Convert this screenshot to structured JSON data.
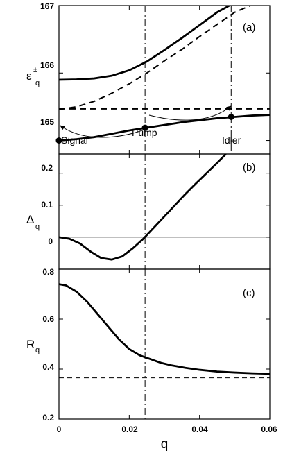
{
  "chart_data": [
    {
      "panel": "a",
      "type": "line",
      "panel_tag": "(a)",
      "ylabel_main": "ε",
      "ylabel_sup": "±",
      "ylabel_sub": "q",
      "xlim": [
        0,
        0.06
      ],
      "ylim": [
        164.8,
        167
      ],
      "yticks": [
        165,
        166,
        167
      ],
      "yticklabels": [
        "165",
        "166",
        "167"
      ],
      "vlines": [
        0.0245,
        0.049
      ],
      "series": [
        {
          "style": "solid",
          "x": [
            0,
            0.005,
            0.01,
            0.015,
            0.02,
            0.025,
            0.03,
            0.035,
            0.04,
            0.045,
            0.0485
          ],
          "y": [
            165.9,
            165.905,
            165.92,
            165.96,
            166.04,
            166.17,
            166.34,
            166.52,
            166.71,
            166.9,
            167.0
          ]
        },
        {
          "style": "dashed",
          "x": [
            0,
            0.005,
            0.01,
            0.015,
            0.02,
            0.025,
            0.03,
            0.035,
            0.04,
            0.045,
            0.05,
            0.0545
          ],
          "y": [
            165.46,
            165.5,
            165.58,
            165.7,
            165.84,
            166.0,
            166.18,
            166.35,
            166.54,
            166.72,
            166.9,
            167.0
          ]
        },
        {
          "style": "dashed",
          "x": [
            0,
            0.06
          ],
          "y": [
            165.47,
            165.47
          ]
        },
        {
          "style": "solid",
          "x": [
            0,
            0.005,
            0.01,
            0.015,
            0.02,
            0.025,
            0.03,
            0.035,
            0.04,
            0.045,
            0.05,
            0.055,
            0.06
          ],
          "y": [
            165.0,
            165.02,
            165.05,
            165.1,
            165.15,
            165.19,
            165.23,
            165.27,
            165.3,
            165.33,
            165.35,
            165.37,
            165.38
          ]
        }
      ],
      "points": [
        {
          "label": "Signal",
          "x": 0,
          "y": 165.0
        },
        {
          "label": "Pump",
          "x": 0.0245,
          "y": 165.19
        },
        {
          "label": "Idler",
          "x": 0.049,
          "y": 165.35
        }
      ]
    },
    {
      "panel": "b",
      "type": "line",
      "panel_tag": "(b)",
      "ylabel_main": "Δ",
      "ylabel_sub": "q",
      "xlim": [
        0,
        0.06
      ],
      "ylim": [
        -0.1,
        0.26
      ],
      "yticks": [
        0,
        0.1,
        0.2
      ],
      "yticklabels": [
        "0",
        "0.1",
        "0.2"
      ],
      "hlines": [
        0
      ],
      "vlines": [
        0.0245
      ],
      "series": [
        {
          "style": "solid",
          "x": [
            0,
            0.003,
            0.006,
            0.009,
            0.012,
            0.015,
            0.018,
            0.021,
            0.024,
            0.027,
            0.03,
            0.033,
            0.036,
            0.039,
            0.042,
            0.045,
            0.0475
          ],
          "y": [
            0,
            -0.005,
            -0.02,
            -0.045,
            -0.065,
            -0.07,
            -0.06,
            -0.035,
            -0.005,
            0.03,
            0.065,
            0.1,
            0.135,
            0.168,
            0.2,
            0.232,
            0.26
          ]
        }
      ]
    },
    {
      "panel": "c",
      "type": "line",
      "panel_tag": "(c)",
      "ylabel_main": "R",
      "ylabel_sub": "q",
      "xlabel": "q",
      "xlim": [
        0,
        0.06
      ],
      "ylim": [
        0.2,
        0.8
      ],
      "yticks": [
        0.2,
        0.4,
        0.6,
        0.8
      ],
      "yticklabels": [
        "0.2",
        "0.4",
        "0.6",
        "0.8"
      ],
      "xticks": [
        0,
        0.02,
        0.04,
        0.06
      ],
      "xticklabels": [
        "0",
        "0.02",
        "0.04",
        "0.06"
      ],
      "hlines": [
        0.365
      ],
      "vlines": [
        0.0245
      ],
      "series": [
        {
          "style": "solid",
          "x": [
            0,
            0.002,
            0.005,
            0.008,
            0.011,
            0.014,
            0.017,
            0.02,
            0.023,
            0.026,
            0.029,
            0.032,
            0.036,
            0.04,
            0.045,
            0.05,
            0.055,
            0.06
          ],
          "y": [
            0.74,
            0.735,
            0.71,
            0.67,
            0.62,
            0.57,
            0.52,
            0.48,
            0.455,
            0.44,
            0.425,
            0.415,
            0.405,
            0.397,
            0.39,
            0.386,
            0.383,
            0.381
          ]
        }
      ]
    }
  ]
}
